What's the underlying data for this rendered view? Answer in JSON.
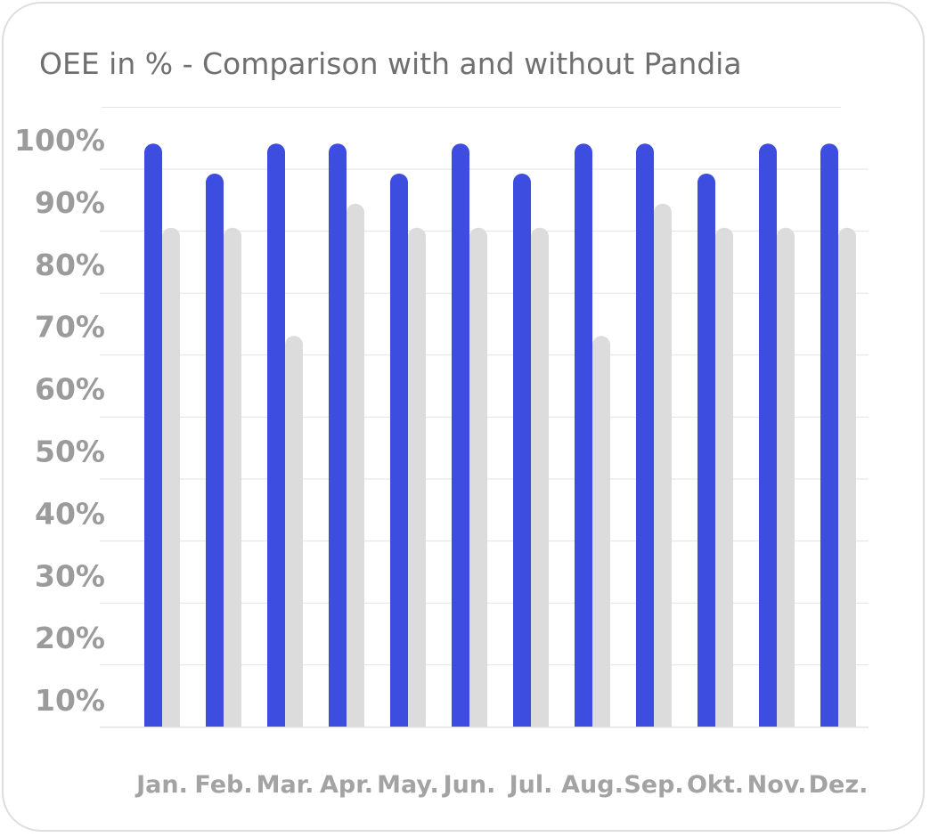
{
  "chart_data": {
    "type": "bar",
    "title": "OEE in % - Comparison with and without Pandia",
    "xlabel": "",
    "ylabel": "",
    "categories": [
      "Jan.",
      "Feb.",
      "Mar.",
      "Apr.",
      "May.",
      "Jun.",
      "Jul.",
      "Aug.",
      "Sep.",
      "Okt.",
      "Nov.",
      "Dez."
    ],
    "y_tick_labels": [
      "100%",
      "90%",
      "80%",
      "70%",
      "60%",
      "50%",
      "40%",
      "30%",
      "20%",
      "10%"
    ],
    "ylim": [
      0,
      100
    ],
    "grid": true,
    "legend": "none",
    "series": [
      {
        "color": "#3d4ddf",
        "values": [
          97,
          92,
          97,
          97,
          92,
          97,
          92,
          97,
          97,
          92,
          97,
          97
        ]
      },
      {
        "color": "#dcdcdc",
        "values": [
          83,
          83,
          65,
          87,
          83,
          83,
          83,
          65,
          87,
          83,
          83,
          83
        ]
      }
    ]
  }
}
